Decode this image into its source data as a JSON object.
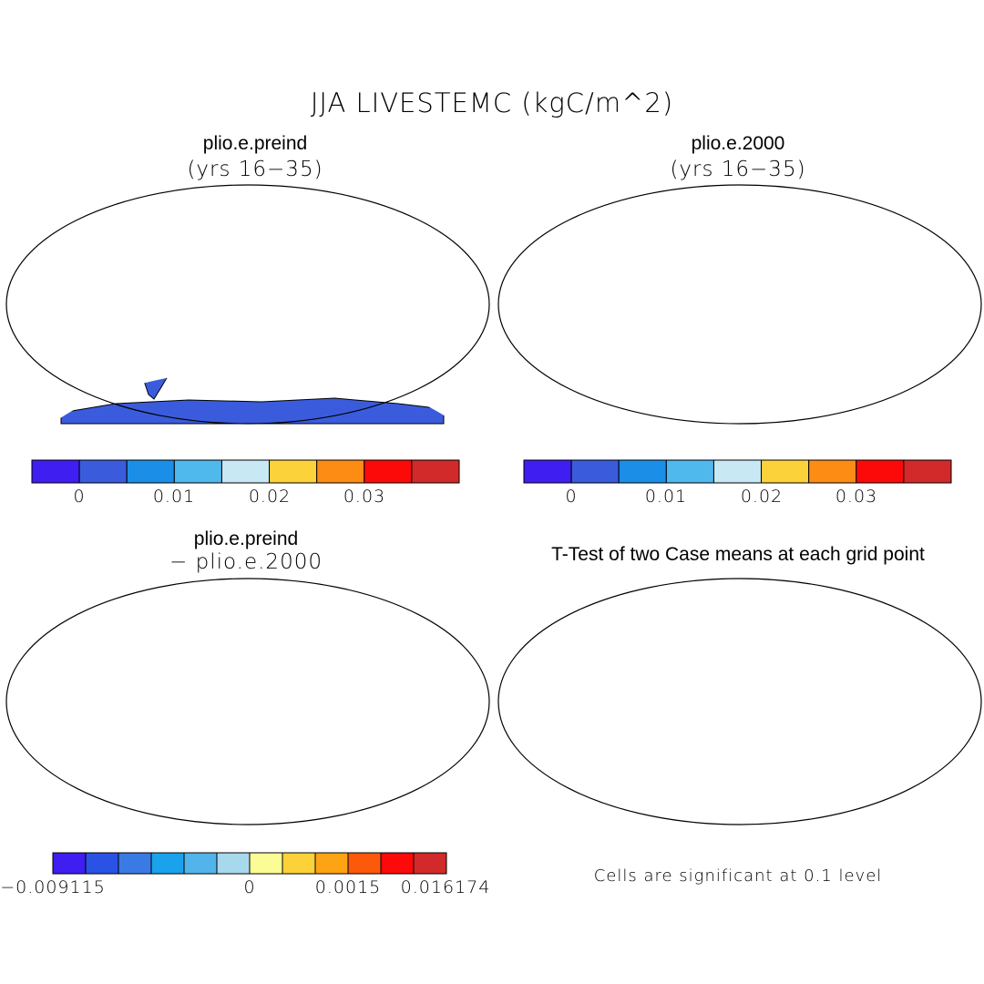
{
  "title": "JJA LIVESTEMC (kgC/m^2)",
  "panels": [
    {
      "title": "plio.e.preind",
      "subtitle": "(yrs 16−35)",
      "map": "preind-field-map"
    },
    {
      "title": "plio.e.2000",
      "subtitle": "(yrs 16−35)",
      "map": "2000-field-map"
    },
    {
      "title": "plio.e.preind",
      "subtitle": "− plio.e.2000",
      "map": "difference-field-map"
    },
    {
      "title": "T-Test of two Case means at each grid point",
      "subtitle": "",
      "map": "significance-map"
    }
  ],
  "colorbars": {
    "field": {
      "colors": [
        "#3e1ef0",
        "#3a5cdc",
        "#1b8ee8",
        "#4fb8ec",
        "#c8e8f4",
        "#fcd23a",
        "#fc8c14",
        "#fc0a0a",
        "#d22a2a"
      ],
      "tick_labels": [
        "0",
        "0.01",
        "0.02",
        "0.03"
      ]
    },
    "difference": {
      "colors": [
        "#3e1ef0",
        "#2a52e4",
        "#3a7ae4",
        "#1aa2ec",
        "#52b4ea",
        "#a8d8ec",
        "#fcfc96",
        "#fcd23a",
        "#fca414",
        "#fc5a0a",
        "#fc0a0a",
        "#d22a2a"
      ],
      "tick_labels": [
        "−0.009115",
        "0",
        "0.0015",
        "0.016174"
      ]
    }
  },
  "significance_note": "Cells are significant at 0.1 level",
  "colors": {
    "ocean": "#ffffff",
    "outline": "#000000",
    "significant": "#fc0000"
  }
}
